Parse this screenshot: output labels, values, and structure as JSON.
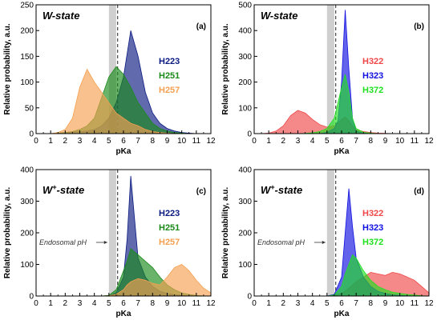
{
  "chart_data": [
    {
      "panel": "a",
      "type": "area",
      "state_label": "W-state",
      "panel_letter": "(a)",
      "xlabel": "pKa",
      "ylabel": "Relative probability, a.u.",
      "xlim": [
        0,
        12
      ],
      "ylim": [
        0,
        250
      ],
      "xticks": [
        0,
        1,
        2,
        3,
        4,
        5,
        6,
        7,
        8,
        9,
        10,
        11,
        12
      ],
      "yticks": [
        0,
        50,
        100,
        150,
        200,
        250
      ],
      "endosomal_band": [
        5.0,
        5.5
      ],
      "dashed_x": 5.6,
      "annotation": "",
      "x": [
        0.5,
        1.0,
        1.5,
        2.0,
        2.5,
        3.0,
        3.5,
        4.0,
        4.5,
        5.0,
        5.5,
        6.0,
        6.5,
        7.0,
        7.5,
        8.0,
        8.5,
        9.0,
        9.5,
        10.0,
        10.5,
        11.0
      ],
      "series": [
        {
          "name": "H223",
          "color": "#0a1a80",
          "values": [
            0,
            0,
            1,
            2,
            3,
            4,
            5,
            8,
            15,
            30,
            60,
            110,
            200,
            150,
            80,
            40,
            20,
            10,
            5,
            2,
            1,
            0
          ]
        },
        {
          "name": "H251",
          "color": "#1a8a1a",
          "values": [
            0,
            0,
            1,
            2,
            4,
            8,
            15,
            30,
            70,
            110,
            130,
            115,
            90,
            60,
            40,
            20,
            10,
            5,
            2,
            1,
            0,
            0
          ]
        },
        {
          "name": "H257",
          "color": "#f5a050",
          "values": [
            0,
            0,
            2,
            8,
            30,
            90,
            125,
            100,
            80,
            60,
            40,
            30,
            20,
            15,
            8,
            4,
            2,
            1,
            0,
            0,
            0,
            0
          ]
        }
      ]
    },
    {
      "panel": "b",
      "type": "area",
      "state_label": "W-state",
      "panel_letter": "(b)",
      "xlabel": "pKa",
      "ylabel": "Relative probability, a.u.",
      "xlim": [
        0,
        12
      ],
      "ylim": [
        0,
        500
      ],
      "xticks": [
        0,
        1,
        2,
        3,
        4,
        5,
        6,
        7,
        8,
        9,
        10,
        11,
        12
      ],
      "yticks": [
        0,
        100,
        200,
        300,
        400,
        500
      ],
      "endosomal_band": [
        5.0,
        5.5
      ],
      "dashed_x": 5.6,
      "annotation": "",
      "x": [
        0.5,
        1.0,
        1.5,
        2.0,
        2.5,
        3.0,
        3.5,
        4.0,
        4.5,
        5.0,
        5.5,
        5.75,
        6.0,
        6.25,
        6.5,
        6.75,
        7.0,
        7.5,
        8.0,
        8.5,
        9.0,
        9.5,
        10.0,
        10.5,
        11.0
      ],
      "series": [
        {
          "name": "H322",
          "color": "#f04848",
          "values": [
            0,
            2,
            10,
            30,
            70,
            90,
            80,
            55,
            35,
            25,
            30,
            40,
            55,
            65,
            50,
            30,
            15,
            8,
            4,
            2,
            1,
            0,
            0,
            0,
            0
          ]
        },
        {
          "name": "H323",
          "color": "#1010e0",
          "values": [
            0,
            0,
            0,
            0,
            0,
            0,
            0,
            0,
            0,
            5,
            20,
            50,
            200,
            480,
            250,
            60,
            10,
            2,
            0,
            0,
            0,
            0,
            0,
            0,
            0
          ]
        },
        {
          "name": "H372",
          "color": "#20e020",
          "values": [
            0,
            0,
            0,
            0,
            0,
            0,
            1,
            3,
            8,
            20,
            60,
            120,
            180,
            230,
            160,
            60,
            20,
            5,
            2,
            0,
            0,
            0,
            0,
            0,
            0
          ]
        }
      ]
    },
    {
      "panel": "c",
      "type": "area",
      "state_label_main": "W",
      "state_label_sup": "+",
      "state_label_rest": "-state",
      "panel_letter": "(c)",
      "xlabel": "pKa",
      "ylabel": "Relative probability, a.u.",
      "xlim": [
        0,
        12
      ],
      "ylim": [
        0,
        400
      ],
      "xticks": [
        0,
        1,
        2,
        3,
        4,
        5,
        6,
        7,
        8,
        9,
        10,
        11,
        12
      ],
      "yticks": [
        0,
        100,
        200,
        300,
        400
      ],
      "endosomal_band": [
        5.0,
        5.5
      ],
      "dashed_x": 5.6,
      "annotation": "Endosomal pH",
      "x": [
        0.5,
        1.0,
        2.0,
        3.0,
        4.0,
        4.5,
        5.0,
        5.5,
        6.0,
        6.25,
        6.5,
        6.75,
        7.0,
        7.5,
        8.0,
        8.5,
        9.0,
        9.5,
        10.0,
        10.5,
        11.0,
        11.5,
        12.0
      ],
      "series": [
        {
          "name": "H223",
          "color": "#0a1a80",
          "values": [
            0,
            0,
            0,
            0,
            0,
            0,
            0,
            10,
            60,
            180,
            380,
            250,
            120,
            60,
            30,
            15,
            8,
            4,
            2,
            1,
            0,
            0,
            0
          ]
        },
        {
          "name": "H251",
          "color": "#1a8a1a",
          "values": [
            0,
            0,
            0,
            0,
            0,
            0,
            2,
            20,
            80,
            110,
            150,
            140,
            130,
            110,
            90,
            60,
            35,
            20,
            10,
            5,
            2,
            0,
            0
          ]
        },
        {
          "name": "H257",
          "color": "#f5a050",
          "values": [
            0,
            0,
            0,
            0,
            0,
            0,
            1,
            5,
            20,
            35,
            45,
            50,
            55,
            50,
            40,
            35,
            60,
            90,
            100,
            80,
            50,
            25,
            10
          ]
        }
      ]
    },
    {
      "panel": "d",
      "type": "area",
      "state_label_main": "W",
      "state_label_sup": "+",
      "state_label_rest": "-state",
      "panel_letter": "(d)",
      "xlabel": "pKa",
      "ylabel": "Relative probability, a.u.",
      "xlim": [
        0,
        12
      ],
      "ylim": [
        0,
        400
      ],
      "xticks": [
        0,
        1,
        2,
        3,
        4,
        5,
        6,
        7,
        8,
        9,
        10,
        11,
        12
      ],
      "yticks": [
        0,
        100,
        200,
        300,
        400
      ],
      "endosomal_band": [
        5.0,
        5.5
      ],
      "dashed_x": 5.6,
      "annotation": "Endosomal pH",
      "x": [
        0.5,
        1.0,
        2.0,
        3.0,
        4.0,
        5.0,
        5.5,
        6.0,
        6.25,
        6.5,
        6.75,
        7.0,
        7.5,
        8.0,
        8.5,
        9.0,
        9.5,
        10.0,
        10.5,
        11.0,
        11.5,
        12.0
      ],
      "series": [
        {
          "name": "H322",
          "color": "#f04848",
          "values": [
            0,
            0,
            0,
            0,
            0,
            0,
            2,
            8,
            15,
            25,
            35,
            45,
            60,
            75,
            70,
            65,
            75,
            70,
            60,
            50,
            30,
            10
          ]
        },
        {
          "name": "H323",
          "color": "#1010e0",
          "values": [
            0,
            0,
            0,
            0,
            0,
            0,
            5,
            60,
            200,
            340,
            220,
            120,
            60,
            30,
            15,
            8,
            4,
            2,
            1,
            0,
            0,
            0
          ]
        },
        {
          "name": "H372",
          "color": "#20e020",
          "values": [
            0,
            0,
            0,
            0,
            0,
            0,
            3,
            30,
            70,
            100,
            130,
            120,
            80,
            50,
            30,
            20,
            12,
            8,
            5,
            3,
            1,
            0
          ]
        }
      ]
    }
  ]
}
